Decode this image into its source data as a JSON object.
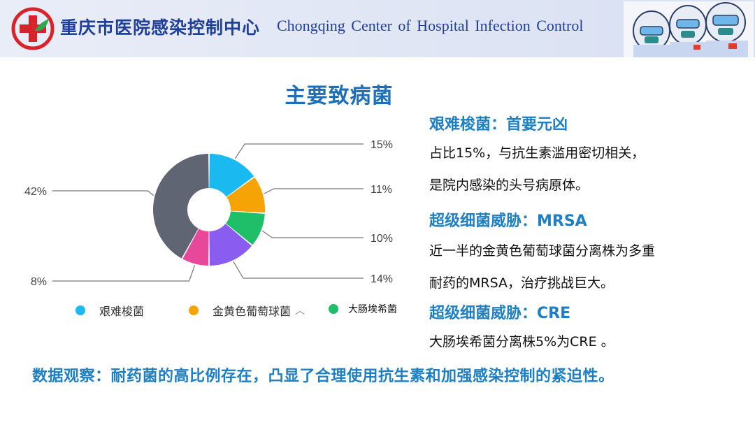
{
  "header": {
    "org_name_cn": "重庆市医院感染控制中心",
    "org_name_en": "Chongqing  Center of  Hospital Infection  Control"
  },
  "chart_data": {
    "type": "pie",
    "style": "donut",
    "title": "主要致病菌",
    "legend_position": "bottom",
    "labels": [
      "艰难梭菌",
      "金黄色葡萄球菌",
      "大肠埃希菌",
      "",
      "",
      ""
    ],
    "values": [
      15,
      11,
      10,
      14,
      8,
      42
    ],
    "value_labels": [
      "15%",
      "11%",
      "10%",
      "14%",
      "8%",
      "42%"
    ],
    "colors": [
      "#1ab9f0",
      "#f6a405",
      "#1fbf6a",
      "#8b5cf0",
      "#e8489a",
      "#5f6573"
    ],
    "legend": [
      {
        "label": "艰难梭菌",
        "color": "#1ab9f0"
      },
      {
        "label": "金黄色葡萄球菌",
        "color": "#f6a405",
        "chevron": "^"
      },
      {
        "label": "大肠埃希菌",
        "color": "#1fbf6a"
      }
    ]
  },
  "sections": [
    {
      "title": "艰难梭菌：首要元凶",
      "lines": [
        "占比15%，与抗生素滥用密切相关，",
        "是院内感染的头号病原体。"
      ]
    },
    {
      "title": "超级细菌威胁：MRSA",
      "lines": [
        "近一半的金黄色葡萄球菌分离株为多重",
        "耐药的MRSA，治疗挑战巨大。"
      ]
    },
    {
      "title": "超级细菌威胁：CRE",
      "lines": [
        " 大肠埃希菌分离株5%为CRE 。"
      ]
    }
  ],
  "footer": {
    "note": "数据观察：耐药菌的高比例存在，凸显了合理使用抗生素和加强感染控制的紧迫性。"
  }
}
